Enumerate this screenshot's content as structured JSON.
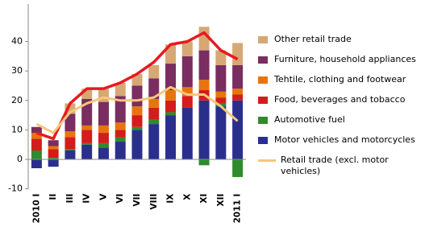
{
  "chart_data": {
    "type": "bar",
    "stacked": true,
    "categories": [
      "2010 I",
      "II",
      "III",
      "IV",
      "V",
      "VI",
      "VII",
      "VIII",
      "IX",
      "X",
      "XI",
      "XII",
      "2011 I"
    ],
    "ylim": [
      -10,
      50
    ],
    "yticks": [
      -10,
      0,
      10,
      20,
      30,
      40
    ],
    "series": [
      {
        "name": "Motor vehicles and motorcycles",
        "color": "#2b2f8c",
        "values": [
          -3,
          -2.5,
          3,
          5,
          4,
          6,
          10,
          12,
          15,
          17.5,
          20,
          18,
          20
        ]
      },
      {
        "name": "Automotive fuel",
        "color": "#2e8b2e",
        "values": [
          3,
          0.5,
          0.5,
          0.5,
          1.5,
          1.5,
          1,
          1.5,
          1,
          0,
          -2,
          1,
          -6
        ]
      },
      {
        "name": "Food, beverages and tobacco",
        "color": "#d41c1c",
        "values": [
          4,
          3,
          4,
          4.5,
          3.5,
          2.5,
          4,
          4,
          4,
          4,
          3.5,
          2,
          2
        ]
      },
      {
        "name": "Tehtile, clothing and footwear",
        "color": "#e8740f",
        "values": [
          2,
          1,
          2,
          1.5,
          2.5,
          2.5,
          3,
          3,
          3.5,
          3,
          3.5,
          2,
          2
        ]
      },
      {
        "name": "Furniture, household appliances",
        "color": "#7a2d60",
        "values": [
          2,
          2,
          6,
          9,
          8,
          9,
          7,
          7,
          9,
          10.5,
          10,
          9,
          8
        ]
      },
      {
        "name": "Other retail trade",
        "color": "#d6a874",
        "values": [
          0,
          0,
          3.5,
          3.5,
          4.5,
          4.5,
          4,
          4.5,
          6.5,
          5,
          8,
          5,
          7.5
        ]
      },
      {
        "type": "line",
        "color": "#e8191f",
        "values": [
          9,
          7,
          19,
          24,
          24,
          26,
          29,
          33,
          39,
          40,
          43,
          37,
          34
        ]
      },
      {
        "type": "line",
        "name": "Retail trade (excl. motor vehicles)",
        "color": "#f5c77a",
        "values": [
          12,
          9,
          16,
          19,
          21,
          20,
          20,
          21,
          24.5,
          22,
          22,
          18,
          13
        ]
      }
    ]
  }
}
